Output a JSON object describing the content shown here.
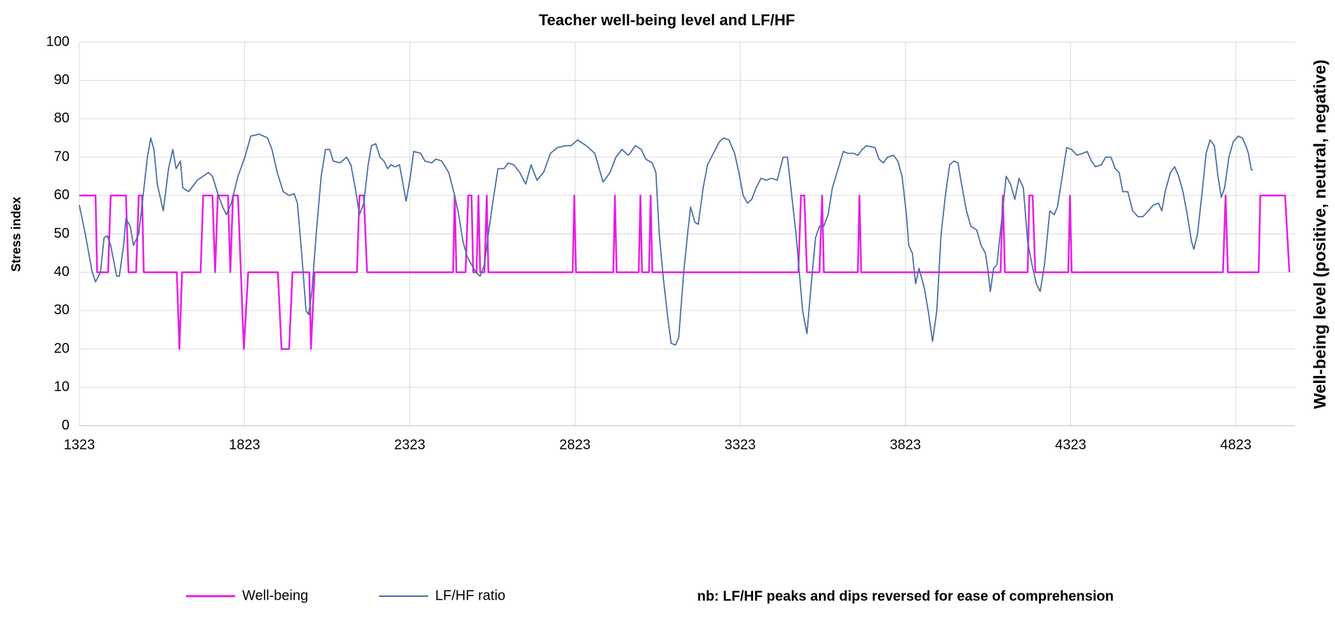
{
  "chart_data": {
    "type": "line",
    "title": "Teacher well-being level and LF/HF",
    "ylabel": "Stress index",
    "y2label": "Well-being  level (positive, neutral, negative)",
    "note": "nb: LF/HF peaks and dips reversed for ease of comprehension",
    "xlim": [
      1323,
      5002
    ],
    "xticks": [
      1323,
      1823,
      2323,
      2823,
      3323,
      3823,
      4323,
      4823
    ],
    "ylim": [
      0,
      100
    ],
    "yticks": [
      0,
      10,
      20,
      30,
      40,
      50,
      60,
      70,
      80,
      90,
      100
    ],
    "grid": true,
    "series": [
      {
        "name": "Well-being",
        "color": "#e61ee6",
        "x": [
          1323,
          1372,
          1377,
          1410,
          1418,
          1464,
          1472,
          1495,
          1503,
          1513,
          1518,
          1618,
          1626,
          1634,
          1690,
          1698,
          1726,
          1734,
          1742,
          1773,
          1780,
          1788,
          1803,
          1821,
          1834,
          1924,
          1935,
          1958,
          1968,
          2019,
          2024,
          2035,
          2163,
          2171,
          2184,
          2194,
          2454,
          2459,
          2464,
          2492,
          2500,
          2510,
          2515,
          2525,
          2531,
          2536,
          2549,
          2556,
          2561,
          2816,
          2821,
          2826,
          2939,
          2944,
          2949,
          3016,
          3021,
          3026,
          3047,
          3052,
          3057,
          3499,
          3507,
          3517,
          3525,
          3563,
          3571,
          3576,
          3679,
          3684,
          3689,
          4111,
          4118,
          4124,
          4193,
          4198,
          4208,
          4216,
          4316,
          4321,
          4326,
          4784,
          4792,
          4799,
          4892,
          4897,
          4972,
          4985
        ],
        "values": [
          60,
          60,
          40,
          40,
          60,
          60,
          40,
          40,
          60,
          60,
          40,
          40,
          20,
          40,
          40,
          60,
          60,
          40,
          60,
          60,
          40,
          60,
          60,
          20,
          40,
          40,
          20,
          20,
          40,
          40,
          20,
          40,
          40,
          60,
          60,
          40,
          40,
          60,
          40,
          40,
          60,
          60,
          40,
          40,
          60,
          40,
          40,
          60,
          40,
          40,
          60,
          40,
          40,
          60,
          40,
          40,
          60,
          40,
          40,
          60,
          40,
          40,
          60,
          60,
          40,
          40,
          60,
          40,
          40,
          60,
          40,
          40,
          60,
          40,
          40,
          60,
          60,
          40,
          40,
          60,
          40,
          40,
          60,
          40,
          40,
          60,
          60,
          40
        ]
      },
      {
        "name": "LF/HF ratio",
        "color": "#4a6fa5",
        "x": [
          1323,
          1341,
          1362,
          1372,
          1387,
          1398,
          1408,
          1418,
          1436,
          1444,
          1457,
          1464,
          1477,
          1487,
          1503,
          1516,
          1529,
          1539,
          1549,
          1559,
          1577,
          1593,
          1606,
          1616,
          1629,
          1636,
          1654,
          1680,
          1714,
          1726,
          1744,
          1757,
          1768,
          1783,
          1803,
          1824,
          1842,
          1868,
          1893,
          1906,
          1922,
          1940,
          1958,
          1973,
          1983,
          1996,
          2009,
          2017,
          2027,
          2040,
          2055,
          2068,
          2081,
          2091,
          2112,
          2132,
          2145,
          2158,
          2171,
          2184,
          2197,
          2207,
          2220,
          2233,
          2245,
          2256,
          2266,
          2279,
          2292,
          2312,
          2325,
          2335,
          2356,
          2369,
          2389,
          2402,
          2420,
          2441,
          2459,
          2471,
          2484,
          2497,
          2510,
          2523,
          2536,
          2549,
          2561,
          2574,
          2590,
          2608,
          2621,
          2638,
          2656,
          2674,
          2690,
          2708,
          2728,
          2749,
          2770,
          2795,
          2811,
          2831,
          2857,
          2883,
          2908,
          2929,
          2947,
          2965,
          2985,
          3006,
          3024,
          3037,
          3057,
          3068,
          3078,
          3091,
          3104,
          3114,
          3127,
          3137,
          3152,
          3165,
          3173,
          3186,
          3196,
          3211,
          3224,
          3242,
          3260,
          3273,
          3289,
          3306,
          3319,
          3332,
          3345,
          3358,
          3371,
          3386,
          3402,
          3417,
          3435,
          3453,
          3466,
          3479,
          3492,
          3512,
          3525,
          3538,
          3551,
          3563,
          3576,
          3589,
          3602,
          3623,
          3635,
          3648,
          3666,
          3679,
          3692,
          3705,
          3731,
          3743,
          3756,
          3769,
          3787,
          3800,
          3813,
          3826,
          3833,
          3844,
          3854,
          3864,
          3880,
          3892,
          3905,
          3918,
          3931,
          3944,
          3957,
          3970,
          3982,
          3995,
          4008,
          4021,
          4039,
          4052,
          4065,
          4072,
          4080,
          4090,
          4100,
          4116,
          4128,
          4141,
          4154,
          4167,
          4180,
          4193,
          4206,
          4219,
          4231,
          4244,
          4260,
          4273,
          4283,
          4296,
          4311,
          4326,
          4342,
          4360,
          4373,
          4386,
          4398,
          4416,
          4429,
          4445,
          4458,
          4470,
          4481,
          4496,
          4511,
          4527,
          4542,
          4558,
          4573,
          4589,
          4599,
          4609,
          4625,
          4638,
          4650,
          4663,
          4676,
          4689,
          4696,
          4707,
          4720,
          4733,
          4745,
          4758,
          4769,
          4779,
          4789,
          4802,
          4815,
          4830,
          4843,
          4853,
          4861,
          4869,
          4874
        ],
        "values": [
          57.5,
          50,
          40,
          37.5,
          40,
          49,
          49.5,
          47,
          39,
          39,
          47,
          54,
          52,
          47,
          50,
          60,
          70,
          75,
          72,
          63,
          56,
          67,
          72,
          67,
          69,
          62,
          61,
          64,
          66,
          65,
          60,
          57,
          55,
          58,
          65,
          70,
          75.5,
          76,
          75,
          72,
          66,
          61,
          60,
          60.5,
          58,
          45,
          30,
          29,
          35,
          50,
          65,
          72,
          72,
          69,
          68.5,
          70,
          68,
          62,
          55,
          58,
          68,
          73,
          73.5,
          70,
          69,
          67,
          68,
          67.5,
          68,
          58.5,
          65,
          71.5,
          71,
          69,
          68.5,
          69.5,
          69,
          66,
          60,
          55,
          48,
          44,
          42,
          40,
          39,
          42,
          50,
          58,
          67,
          67,
          68.5,
          68,
          66,
          63,
          68,
          64,
          66,
          71,
          72.5,
          73,
          73,
          74.5,
          73,
          71,
          63.5,
          66,
          70,
          72,
          70.5,
          73,
          72,
          69.5,
          68.5,
          66,
          50,
          38,
          28,
          21.5,
          21,
          23,
          40,
          51,
          57,
          53,
          52.5,
          62,
          68,
          71,
          74,
          75,
          74.5,
          71,
          66,
          60,
          58,
          59,
          62,
          64.5,
          64,
          64.5,
          64,
          70,
          70,
          60,
          50,
          30,
          24,
          37,
          49,
          52,
          52,
          55,
          62,
          68,
          71.5,
          71,
          71,
          70.5,
          72,
          73,
          72.5,
          69.5,
          68.5,
          70,
          70.5,
          69,
          65,
          55,
          47,
          45,
          37,
          41,
          36,
          30,
          22,
          30,
          50,
          60,
          68,
          69,
          68.5,
          62,
          56,
          52,
          51,
          47,
          45,
          41,
          35,
          41,
          42,
          55,
          65,
          63,
          59,
          64.5,
          62,
          48,
          42,
          37,
          35,
          42,
          56,
          55,
          57,
          64,
          72.5,
          72,
          70.5,
          71,
          71.5,
          69,
          67.5,
          68,
          70,
          70,
          67,
          66,
          61,
          61,
          56,
          54.5,
          54.5,
          56,
          57.5,
          58,
          56,
          61,
          66,
          67.5,
          65,
          61,
          55,
          48,
          46,
          50,
          60,
          71,
          74.5,
          73,
          65,
          59.5,
          62,
          70,
          74,
          75.5,
          75,
          73,
          71,
          67,
          66.5
        ]
      }
    ]
  }
}
